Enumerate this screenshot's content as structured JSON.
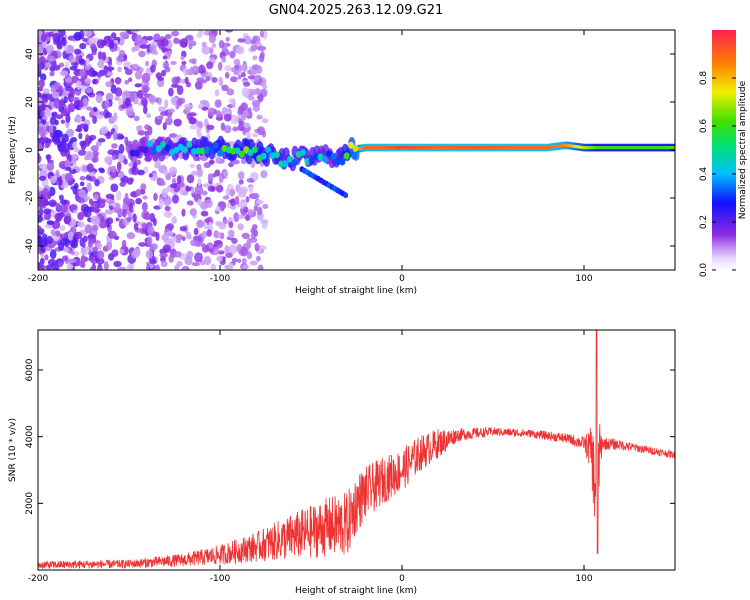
{
  "title": "GN04.2025.263.12.09.G21",
  "chart_data": [
    {
      "type": "heatmap",
      "xlabel": "Height of straight line (km)",
      "ylabel": "Frequency (Hz)",
      "xlim": [
        -200,
        150
      ],
      "ylim": [
        -50,
        50
      ],
      "xticks": [
        -200,
        -100,
        0,
        100
      ],
      "yticks": [
        -40,
        -20,
        0,
        20,
        40
      ],
      "grid": false,
      "colorbar": {
        "label": "Normalized spectral amplitude",
        "range": [
          0.0,
          1.0
        ],
        "ticks": [
          "0.0",
          "0.2",
          "0.4",
          "0.6",
          "0.8"
        ]
      },
      "ridge": {
        "description": "dominant frequency track vs height",
        "x": [
          -148,
          -120,
          -100,
          -80,
          -65,
          -50,
          -40,
          -33,
          -28,
          -20,
          -10,
          0,
          20,
          40,
          60,
          80,
          90,
          100,
          110,
          130,
          150
        ],
        "y": [
          0,
          1,
          1,
          -1,
          -4,
          -3,
          -2,
          -3,
          0,
          1,
          1,
          1,
          1,
          1,
          1,
          1,
          2,
          1,
          1,
          1,
          1
        ],
        "amplitude": [
          0.3,
          0.5,
          0.55,
          0.6,
          0.5,
          0.45,
          0.4,
          0.5,
          0.7,
          0.9,
          0.9,
          0.95,
          0.9,
          0.92,
          0.9,
          0.9,
          0.85,
          0.7,
          0.6,
          0.6,
          0.6
        ]
      }
    },
    {
      "type": "line",
      "xlabel": "Height of straight line (km)",
      "ylabel": "SNR (10 * v/v)",
      "xlim": [
        -200,
        150
      ],
      "ylim": [
        0,
        7200
      ],
      "xticks": [
        -200,
        -100,
        0,
        100
      ],
      "yticks": [
        2000,
        4000,
        6000
      ],
      "grid": false,
      "series": [
        {
          "name": "SNR",
          "color": "#ee3333",
          "envelope": {
            "x": [
              -200,
              -150,
              -120,
              -100,
              -80,
              -60,
              -40,
              -30,
              -25,
              -20,
              -10,
              0,
              10,
              20,
              25,
              30,
              50,
              70,
              90,
              100,
              104,
              106,
              108,
              110,
              120,
              135,
              150
            ],
            "mean": [
              150,
              180,
              300,
              450,
              700,
              1000,
              1300,
              1350,
              2000,
              2300,
              2700,
              3000,
              3500,
              3800,
              3900,
              4050,
              4150,
              4100,
              3950,
              3800,
              3600,
              2500,
              3300,
              3800,
              3750,
              3600,
              3450
            ],
            "noise": [
              120,
              130,
              200,
              300,
              450,
              700,
              900,
              1000,
              900,
              800,
              700,
              650,
              550,
              450,
              350,
              200,
              130,
              120,
              150,
              200,
              700,
              1600,
              1300,
              200,
              150,
              120,
              110
            ]
          },
          "peak": {
            "x": 107,
            "y": 7200
          },
          "dip": {
            "x": 107,
            "y": 500
          }
        }
      ]
    }
  ]
}
